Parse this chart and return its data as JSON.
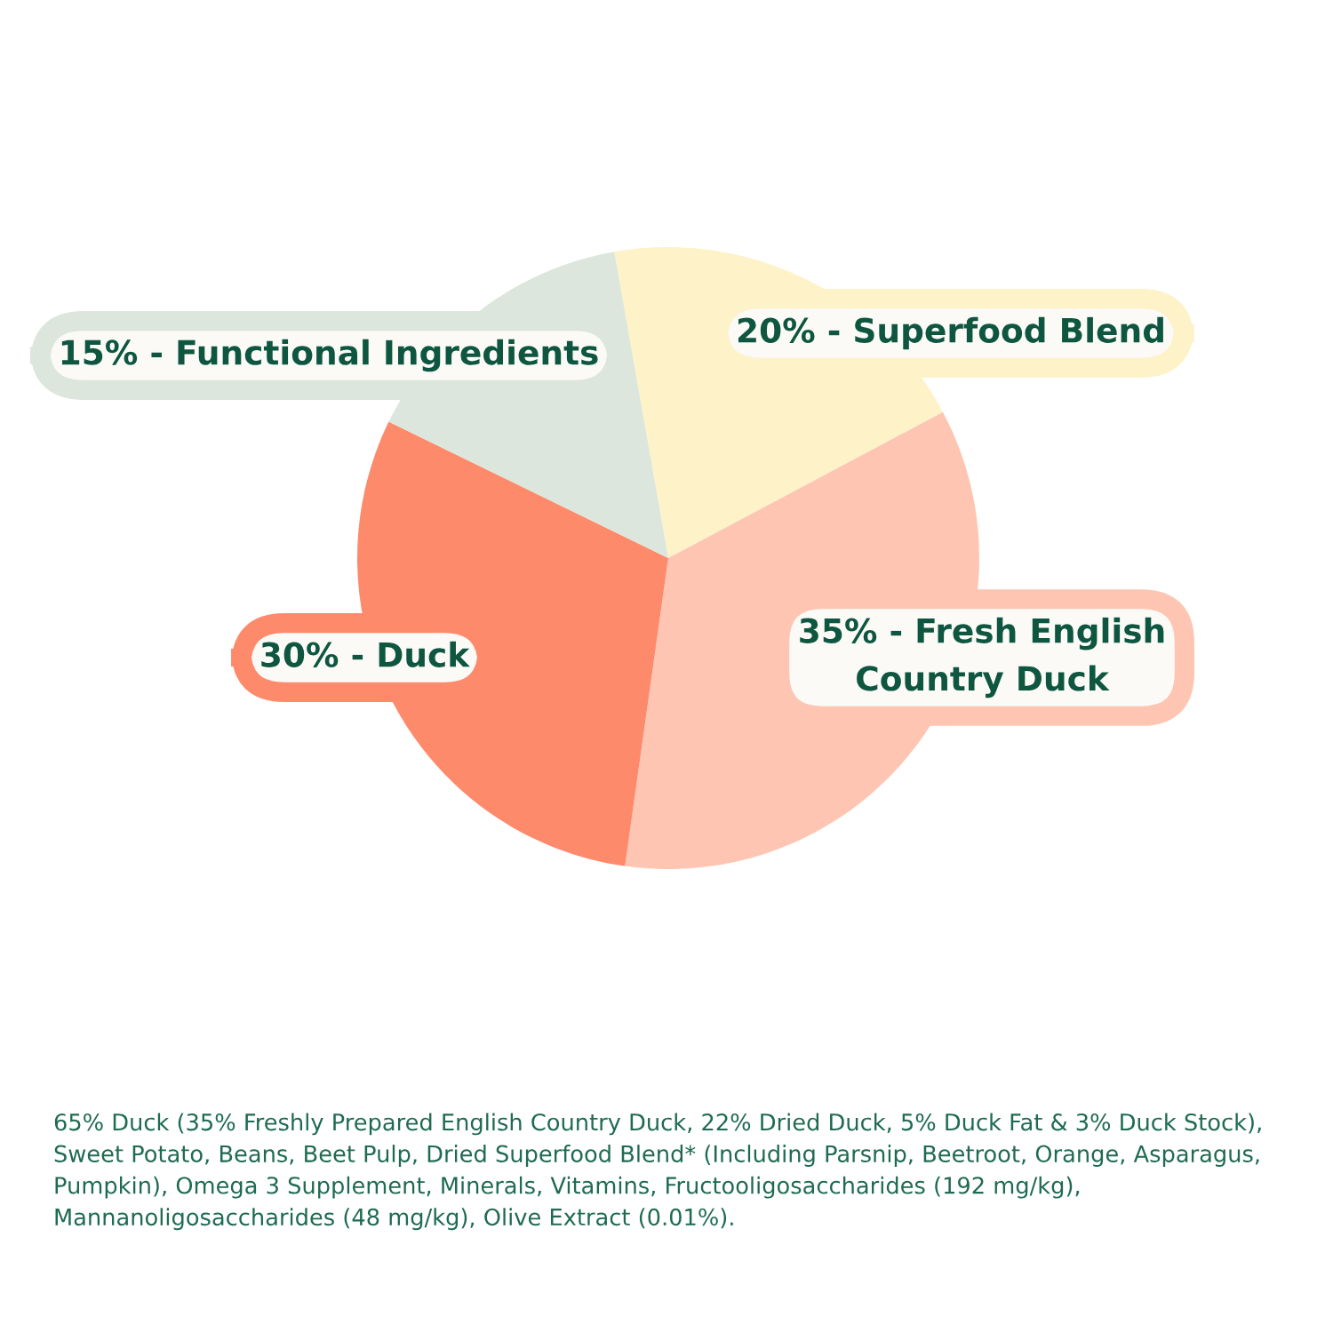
{
  "chart_data": {
    "type": "pie",
    "categories": [
      "20% - Superfood Blend",
      "35% - Fresh English\nCountry Duck",
      "30% - Duck",
      "15% - Functional Ingredients"
    ],
    "values": [
      20,
      35,
      30,
      15
    ],
    "colors": [
      "#fdf2c8",
      "#fec6b2",
      "#fe8a6c",
      "#dce6dc"
    ],
    "annotations": [
      "65% Duck (35% Freshly Prepared English Country Duck, 22% Dried Duck, 5% Duck Fat & 3% Duck Stock), Sweet Potato, Beans, Beet Pulp, Dried Superfood Blend* (Including Parsnip, Beetroot, Orange, Asparagus, Pumpkin), Omega 3 Supplement, Minerals, Vitamins, Fructooligosaccharides (192 mg/kg), Mannanoligosaccharides (48 mg/kg), Olive Extract (0.01%)."
    ]
  }
}
